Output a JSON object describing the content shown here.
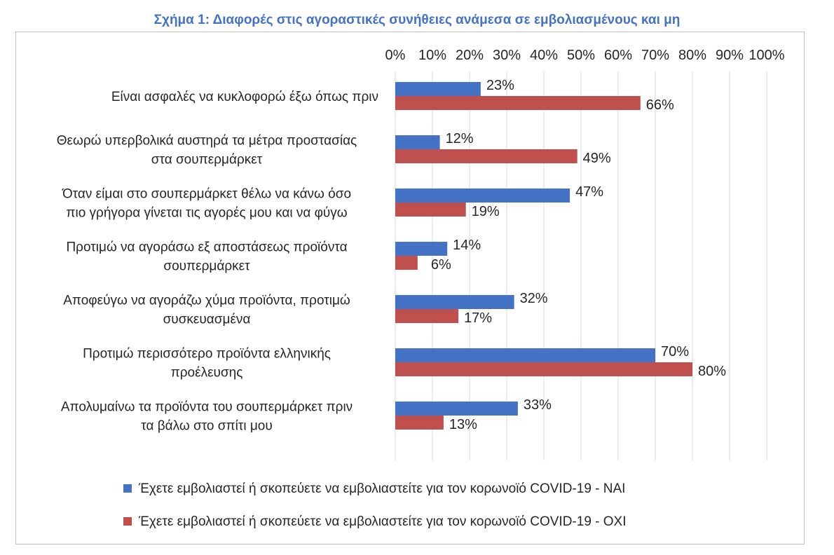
{
  "title": "Σχήμα 1: Διαφορές στις αγοραστικές συνήθειες ανάμεσα σε εμβολιασμένους και μη",
  "colors": {
    "title": "#4472c4",
    "series_nai": "#4472c4",
    "series_oxi": "#c0504d",
    "grid": "#d9d9d9"
  },
  "chart_data": {
    "type": "bar",
    "orientation": "horizontal",
    "title": "Σχήμα 1: Διαφορές στις αγοραστικές συνήθειες ανάμεσα σε εμβολιασμένους και μη",
    "categories": [
      [
        "Είναι ασφαλές να κυκλοφορώ έξω όπως πριν"
      ],
      [
        "Θεωρώ υπερβολικά αυστηρά τα μέτρα προστασίας",
        "στα σουπερμάρκετ"
      ],
      [
        "Όταν είμαι στο σουπερμάρκετ θέλω να κάνω όσο",
        "πιο γρήγορα γίνεται τις αγορές μου και να φύγω"
      ],
      [
        "Προτιμώ να αγοράσω εξ αποστάσεως προϊόντα",
        "σουπερμάρκετ"
      ],
      [
        "Αποφεύγω να αγοράζω χύμα προϊόντα, προτιμώ",
        "συσκευασμένα"
      ],
      [
        "Προτιμώ περισσότερο προϊόντα ελληνικής",
        "προέλευσης"
      ],
      [
        "Απολυμαίνω τα προϊόντα του σουπερμάρκετ πριν",
        "τα βάλω στο σπίτι μου"
      ]
    ],
    "series": [
      {
        "name": "Έχετε εμβολιαστεί ή σκοπεύετε να εμβολιαστείτε για τον κορωνοϊό COVID-19 - ΝΑΙ",
        "color": "#4472c4",
        "values": [
          23,
          12,
          47,
          14,
          32,
          70,
          33
        ],
        "labels": [
          "23%",
          "12%",
          "47%",
          "14%",
          "32%",
          "70%",
          "33%"
        ]
      },
      {
        "name": "Έχετε εμβολιαστεί ή σκοπεύετε να εμβολιαστείτε για τον κορωνοϊό COVID-19 - ΟΧΙ",
        "color": "#c0504d",
        "values": [
          66,
          49,
          19,
          6,
          17,
          80,
          13
        ],
        "labels": [
          "66%",
          "49%",
          "19%",
          "6%",
          "17%",
          "80%",
          "13%"
        ]
      }
    ],
    "xlim": [
      0,
      100
    ],
    "xticks": [
      "0%",
      "10%",
      "20%",
      "30%",
      "40%",
      "50%",
      "60%",
      "70%",
      "80%",
      "90%",
      "100%"
    ],
    "axis_position": "top",
    "grid": true,
    "legend_position": "bottom"
  }
}
